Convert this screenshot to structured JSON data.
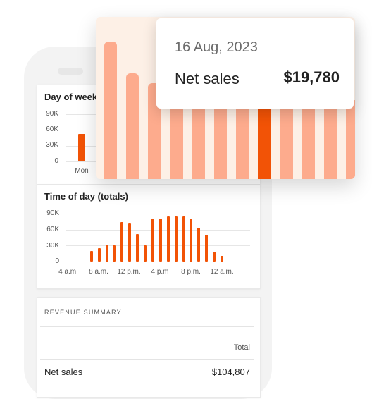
{
  "day_of_week_card": {
    "title": "Day of week",
    "y_ticks": [
      "90K",
      "60K",
      "30K",
      "0"
    ],
    "x_ticks": [
      "Mon"
    ]
  },
  "time_of_day_card": {
    "title": "Time of day (totals)",
    "y_ticks": [
      "90K",
      "60K",
      "30K",
      "0"
    ],
    "x_ticks": [
      "4 a.m.",
      "8 a.m.",
      "12 p.m.",
      "4 p.m",
      "8 p.m.",
      "12 a.m."
    ]
  },
  "revenue_summary": {
    "heading": "REVENUE SUMMARY",
    "column_header": "Total",
    "row_label": "Net sales",
    "row_value": "$104,807"
  },
  "tooltip": {
    "date": "16 Aug, 2023",
    "label": "Net sales",
    "value": "$19,780"
  },
  "colors": {
    "accent": "#f25306",
    "bar_light": "#fdab8d",
    "overlay_bg": "#fdf0e6"
  },
  "chart_data": [
    {
      "type": "bar",
      "title": "Day of week",
      "categories": [
        "Mon"
      ],
      "values": [
        52000
      ],
      "ylim": [
        0,
        90000
      ]
    },
    {
      "type": "bar",
      "title": "Time of day (totals)",
      "x": [
        7,
        8,
        9,
        10,
        11,
        12,
        13,
        14,
        15,
        16,
        17,
        18,
        19,
        20,
        21,
        22,
        23,
        24
      ],
      "values": [
        20000,
        25000,
        30000,
        30000,
        74000,
        72000,
        52000,
        30000,
        81000,
        81000,
        85000,
        85000,
        85000,
        81000,
        64000,
        50000,
        18000,
        10000
      ],
      "ylim": [
        0,
        90000
      ]
    },
    {
      "type": "bar",
      "values": [
        195,
        150,
        136,
        112,
        112,
        112,
        112,
        112,
        112,
        112,
        112,
        112,
        112,
        112,
        112,
        112,
        112,
        112
      ]
    }
  ]
}
